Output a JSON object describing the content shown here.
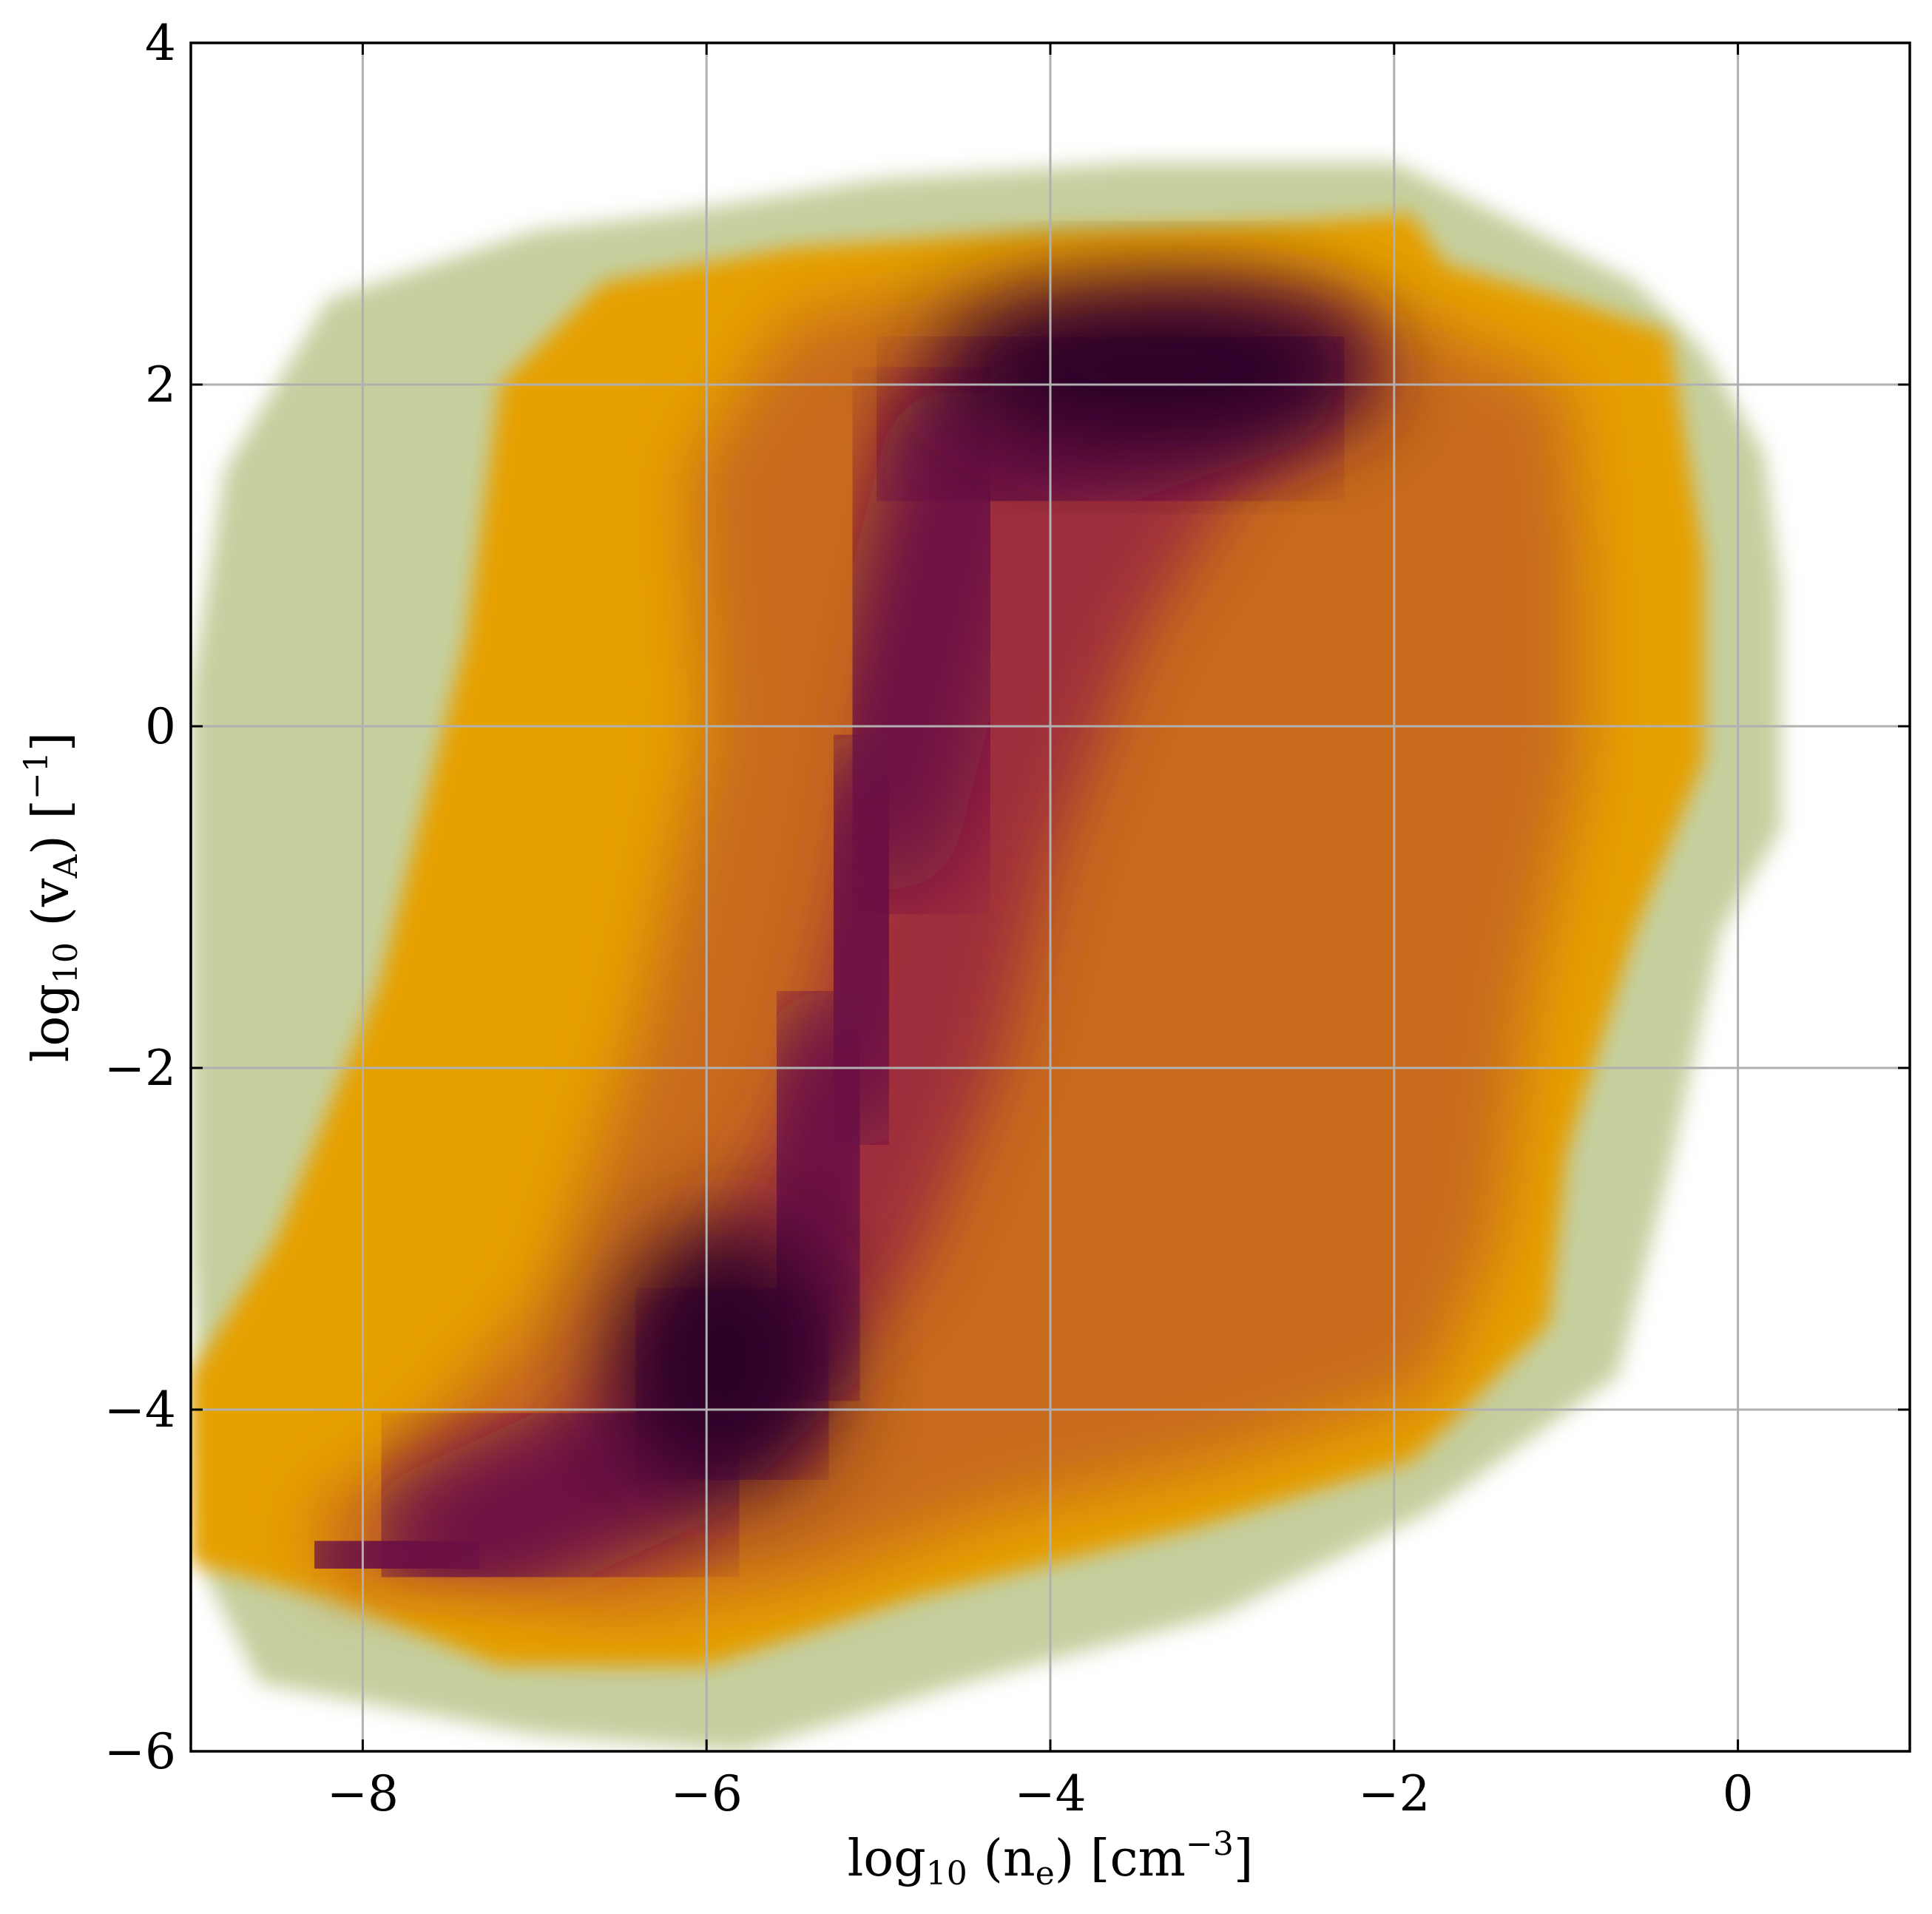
{
  "chart_data": {
    "type": "heatmap",
    "title": "",
    "xlabel": {
      "base": "log",
      "base_sub": "10",
      "open": " (n",
      "var_sub": "e",
      "close": ") [cm",
      "unit_sup": "−3",
      "end": "]"
    },
    "ylabel": {
      "base": "log",
      "base_sub": "10",
      "open": " (v",
      "var_sub": "A",
      "close": ") [",
      "unit_sup": "−1",
      "end": "]"
    },
    "xlim": [
      -9,
      1
    ],
    "ylim": [
      -6,
      4
    ],
    "xticks": [
      -8,
      -6,
      -4,
      -2,
      0
    ],
    "yticks": [
      -6,
      -4,
      -2,
      0,
      2,
      4
    ],
    "xtick_labels": [
      "−8",
      "−6",
      "−4",
      "−2",
      "0"
    ],
    "ytick_labels": [
      "−6",
      "−4",
      "−2",
      "0",
      "2",
      "4"
    ],
    "grid": true,
    "colormap": [
      "#c5cf9e",
      "#e6a000",
      "#c86a1e",
      "#9e2e3a",
      "#6a0a44",
      "#2c0628"
    ],
    "density_core": [
      [
        -3.5,
        2.1
      ],
      [
        -2.8,
        2.1
      ],
      [
        -4.5,
        1.5
      ],
      [
        -5.0,
        -0.5
      ],
      [
        -5.2,
        -2.0
      ],
      [
        -5.5,
        -3.5
      ],
      [
        -6.2,
        -4.2
      ],
      [
        -7.5,
        -4.8
      ],
      [
        -8.1,
        -4.9
      ]
    ]
  }
}
